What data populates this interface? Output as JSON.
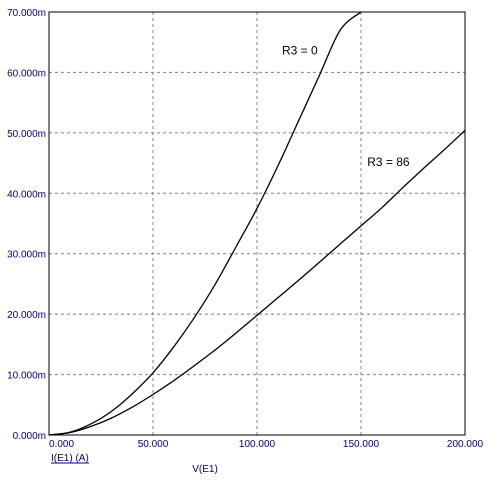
{
  "chart_data": {
    "type": "line",
    "title": "",
    "xlabel": "V(E1)",
    "ylabel": "I(E1) (A)",
    "xlim": [
      0,
      200
    ],
    "ylim": [
      0,
      70
    ],
    "x_ticks": [
      0,
      50,
      100,
      150,
      200
    ],
    "y_ticks": [
      0,
      10,
      20,
      30,
      40,
      50,
      60,
      70
    ],
    "x_tick_labels": [
      "0.000",
      "50.000",
      "100.000",
      "150.000",
      "200.000"
    ],
    "y_tick_labels": [
      "0.000m",
      "10.000m",
      "20.000m",
      "30.000m",
      "40.000m",
      "50.000m",
      "60.000m",
      "70.000m"
    ],
    "grid": true,
    "series": [
      {
        "name": "R3 = 0",
        "x": [
          0,
          10,
          20,
          30,
          40,
          50,
          60,
          70,
          80,
          90,
          100,
          110,
          120,
          130,
          140,
          150
        ],
        "y": [
          0,
          0.45,
          1.8,
          3.9,
          6.8,
          10.3,
          14.6,
          19.5,
          25.0,
          31.2,
          37.5,
          44.5,
          52.0,
          59.5,
          67.0,
          70.0
        ]
      },
      {
        "name": "R3 = 86",
        "x": [
          0,
          10,
          20,
          30,
          40,
          50,
          60,
          70,
          80,
          90,
          100,
          110,
          120,
          130,
          140,
          150,
          160,
          170,
          180,
          190,
          200
        ],
        "y": [
          0,
          0.4,
          1.4,
          2.8,
          4.6,
          6.7,
          9.0,
          11.5,
          14.1,
          16.9,
          19.8,
          22.7,
          25.6,
          28.6,
          31.6,
          34.6,
          37.6,
          40.9,
          44.1,
          47.2,
          50.4
        ]
      }
    ],
    "annotations": [
      {
        "text": "R3 = 0",
        "x": 112,
        "y": 63
      },
      {
        "text": "R3 = 86",
        "x": 153,
        "y": 44.5
      }
    ]
  }
}
